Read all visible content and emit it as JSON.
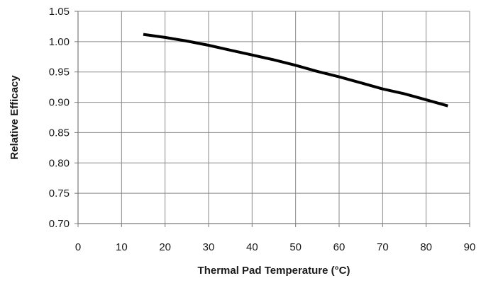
{
  "chart_data": {
    "type": "line",
    "title": "",
    "xlabel": "Thermal Pad Temperature (°C)",
    "ylabel": "Relative Efficacy",
    "xlim": [
      0,
      90
    ],
    "ylim": [
      0.7,
      1.05
    ],
    "x_ticks": [
      "0",
      "10",
      "20",
      "30",
      "40",
      "50",
      "60",
      "70",
      "80",
      "90"
    ],
    "y_ticks": [
      "1.05",
      "1.00",
      "0.95",
      "0.90",
      "0.85",
      "0.80",
      "0.75",
      "0.70"
    ],
    "grid": true,
    "legend": "none",
    "series": [
      {
        "color": "#000000",
        "x": [
          15,
          20,
          25,
          30,
          35,
          40,
          45,
          50,
          55,
          60,
          65,
          70,
          75,
          80,
          85
        ],
        "y": [
          1.012,
          1.007,
          1.001,
          0.994,
          0.986,
          0.978,
          0.97,
          0.961,
          0.951,
          0.942,
          0.932,
          0.922,
          0.914,
          0.904,
          0.894
        ]
      }
    ]
  }
}
